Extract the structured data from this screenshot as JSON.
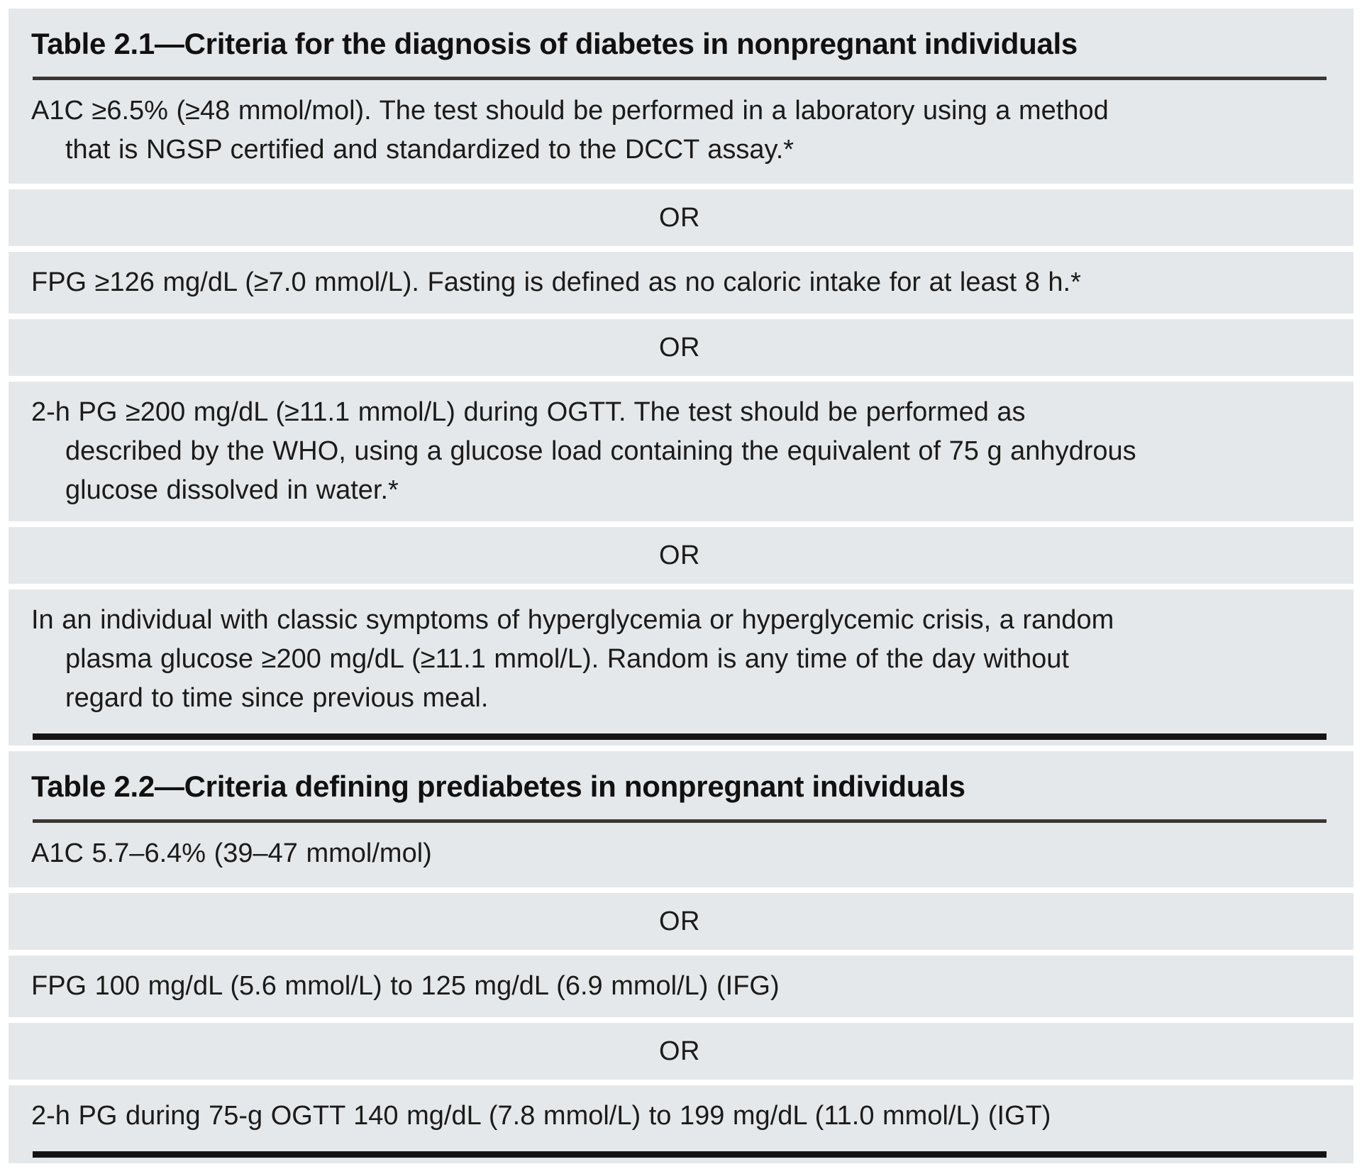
{
  "colors": {
    "page_bg": "#ffffff",
    "band_bg": "#e5e8ea",
    "title_rule": "#3a3733",
    "closing_rule": "#141414",
    "text": "#1b1b1b"
  },
  "tables": [
    {
      "id": "table-2-1",
      "title": "Table 2.1—Criteria for the diagnosis of diabetes in nonpregnant individuals",
      "or_label": "OR",
      "criteria": [
        {
          "lines": [
            "A1C ≥6.5% (≥48 mmol/mol). The test should be performed in a laboratory using a method",
            "that is NGSP certified and standardized to the DCCT assay.*"
          ]
        },
        {
          "lines": [
            "FPG ≥126 mg/dL (≥7.0 mmol/L). Fasting is defined as no caloric intake for at least 8 h.*"
          ]
        },
        {
          "lines": [
            "2-h PG ≥200 mg/dL (≥11.1 mmol/L) during OGTT. The test should be performed as",
            "described by the WHO, using a glucose load containing the equivalent of 75 g anhydrous",
            "glucose dissolved in water.*"
          ]
        },
        {
          "lines": [
            "In an individual with classic symptoms of hyperglycemia or hyperglycemic crisis, a random",
            "plasma glucose ≥200 mg/dL (≥11.1 mmol/L). Random is any time of the day without",
            "regard to time since previous meal."
          ]
        }
      ]
    },
    {
      "id": "table-2-2",
      "title": "Table 2.2—Criteria defining prediabetes in nonpregnant individuals",
      "or_label": "OR",
      "criteria": [
        {
          "lines": [
            "A1C 5.7–6.4% (39–47 mmol/mol)"
          ]
        },
        {
          "lines": [
            "FPG 100 mg/dL (5.6 mmol/L) to 125 mg/dL (6.9 mmol/L) (IFG)"
          ]
        },
        {
          "lines": [
            "2-h PG during 75-g OGTT 140 mg/dL (7.8 mmol/L) to 199 mg/dL (11.0 mmol/L) (IGT)"
          ]
        }
      ]
    }
  ]
}
